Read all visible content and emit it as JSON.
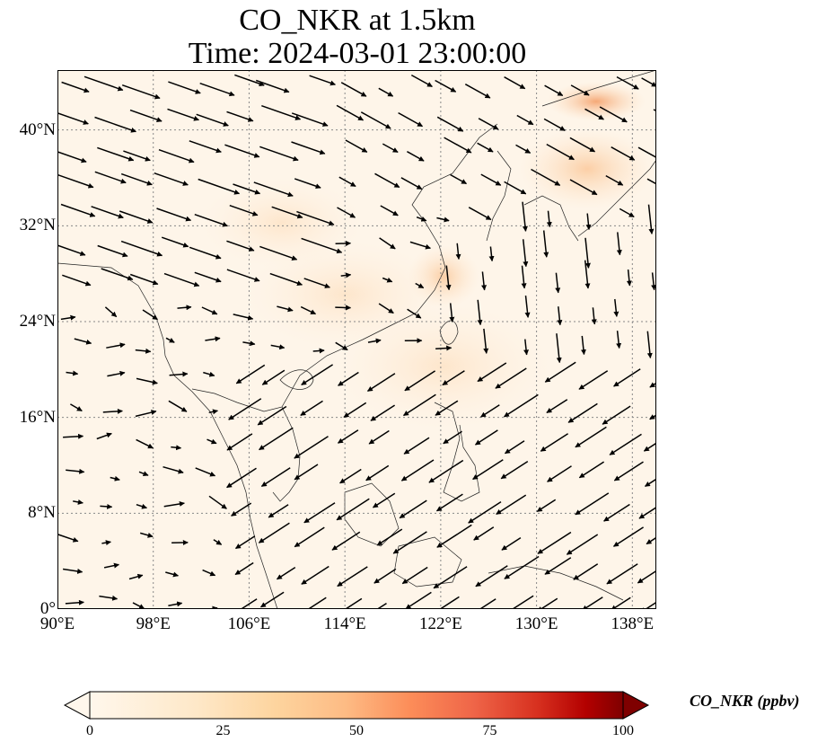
{
  "title": {
    "line1": "CO_NKR at 1.5km",
    "line2": "Time: 2024-03-01 23:00:00"
  },
  "map": {
    "lon_range": [
      90,
      140
    ],
    "lat_range": [
      0,
      45
    ],
    "lat_ticks": [
      {
        "value": 0,
        "label": "0°"
      },
      {
        "value": 8,
        "label": "8°N"
      },
      {
        "value": 16,
        "label": "16°N"
      },
      {
        "value": 24,
        "label": "24°N"
      },
      {
        "value": 32,
        "label": "32°N"
      },
      {
        "value": 40,
        "label": "40°N"
      }
    ],
    "lon_ticks": [
      {
        "value": 90,
        "label": "90°E"
      },
      {
        "value": 98,
        "label": "98°E"
      },
      {
        "value": 106,
        "label": "106°E"
      },
      {
        "value": 114,
        "label": "114°E"
      },
      {
        "value": 122,
        "label": "122°E"
      },
      {
        "value": 130,
        "label": "130°E"
      },
      {
        "value": 138,
        "label": "138°E"
      }
    ],
    "background_color": "#fef5e9",
    "gridlines": "dotted",
    "wind_vectors": "black"
  },
  "colorbar": {
    "label": "CO_NKR (ppbv)",
    "min": 0,
    "max": 100,
    "extend": "both",
    "colormap": "OrRd",
    "ticks": [
      {
        "value": 0,
        "label": "0"
      },
      {
        "value": 25,
        "label": "25"
      },
      {
        "value": 50,
        "label": "50"
      },
      {
        "value": 75,
        "label": "75"
      },
      {
        "value": 100,
        "label": "100"
      }
    ]
  }
}
